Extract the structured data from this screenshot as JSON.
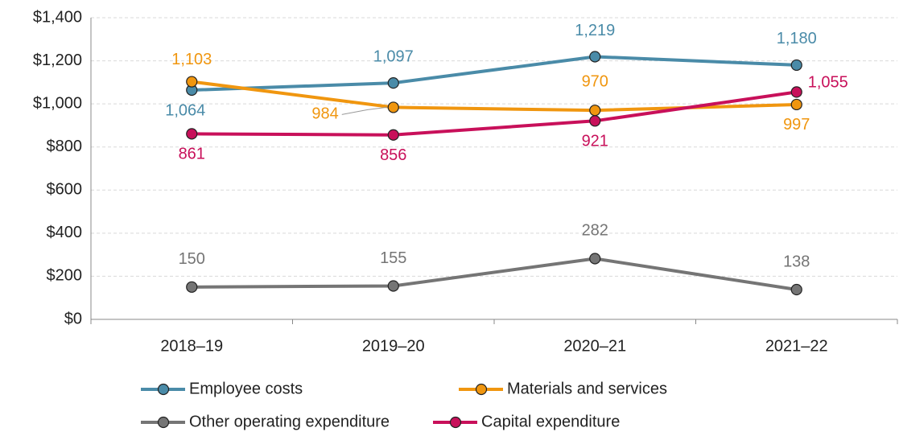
{
  "chart_data": {
    "type": "line",
    "categories": [
      "2018–19",
      "2019–20",
      "2020–21",
      "2021–22"
    ],
    "series": [
      {
        "name": "Employee costs",
        "color": "#4a8ba8",
        "values": [
          1064,
          1097,
          1219,
          1180
        ],
        "value_labels": [
          "1,064",
          "1,097",
          "1,219",
          "1,180"
        ]
      },
      {
        "name": "Materials and services",
        "color": "#f0960f",
        "values": [
          1103,
          984,
          970,
          997
        ],
        "value_labels": [
          "1,103",
          "984",
          "970",
          "997"
        ]
      },
      {
        "name": "Other operating expenditure",
        "color": "#757575",
        "values": [
          150,
          155,
          282,
          138
        ],
        "value_labels": [
          "150",
          "155",
          "282",
          "138"
        ]
      },
      {
        "name": "Capital expenditure",
        "color": "#c8105a",
        "values": [
          861,
          856,
          921,
          1055
        ],
        "value_labels": [
          "861",
          "856",
          "921",
          "1,055"
        ]
      }
    ],
    "ylim": [
      0,
      1400
    ],
    "yticks": [
      {
        "value": 0,
        "label": "$0"
      },
      {
        "value": 200,
        "label": "$200"
      },
      {
        "value": 400,
        "label": "$400"
      },
      {
        "value": 600,
        "label": "$600"
      },
      {
        "value": 800,
        "label": "$800"
      },
      {
        "value": 1000,
        "label": "$1,000"
      },
      {
        "value": 1200,
        "label": "$1,200"
      },
      {
        "value": 1400,
        "label": "$1,400"
      }
    ],
    "grid": true
  }
}
